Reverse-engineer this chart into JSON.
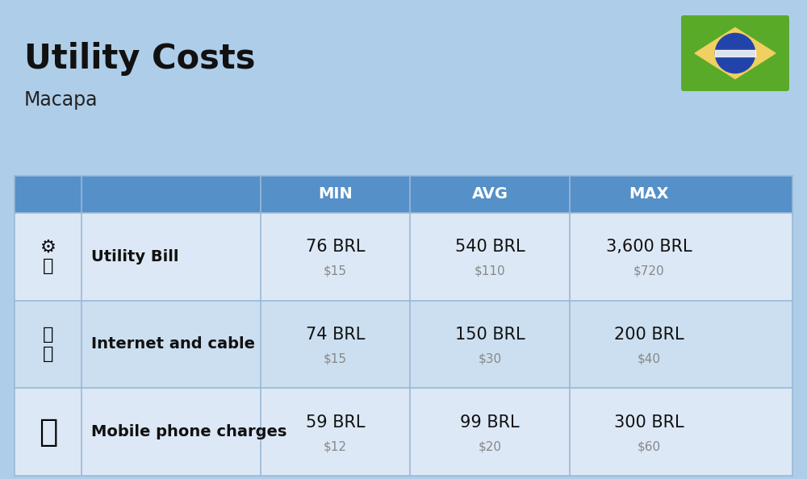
{
  "title": "Utility Costs",
  "subtitle": "Macapa",
  "background_color": "#aecde8",
  "header_color": "#5590c8",
  "header_text_color": "#ffffff",
  "row_color_1": "#dce8f5",
  "row_color_2": "#ccdff0",
  "divider_color": "#9ab8d8",
  "icon_col_bg": "#aecde8",
  "headers": [
    "MIN",
    "AVG",
    "MAX"
  ],
  "rows": [
    {
      "label": "Utility Bill",
      "min_brl": "76 BRL",
      "min_usd": "$15",
      "avg_brl": "540 BRL",
      "avg_usd": "$110",
      "max_brl": "3,600 BRL",
      "max_usd": "$720"
    },
    {
      "label": "Internet and cable",
      "min_brl": "74 BRL",
      "min_usd": "$15",
      "avg_brl": "150 BRL",
      "avg_usd": "$30",
      "max_brl": "200 BRL",
      "max_usd": "$40"
    },
    {
      "label": "Mobile phone charges",
      "min_brl": "59 BRL",
      "min_usd": "$12",
      "avg_brl": "99 BRL",
      "avg_usd": "$20",
      "max_brl": "300 BRL",
      "max_usd": "$60"
    }
  ],
  "flag_green": "#5aaa2a",
  "flag_yellow": "#f0d060",
  "flag_blue": "#2244aa",
  "flag_white": "#ffffff"
}
